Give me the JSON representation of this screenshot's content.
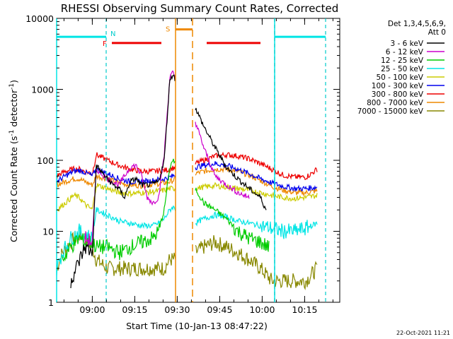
{
  "chart_data": {
    "type": "line",
    "title": "RHESSI Observing Summary Count Rates, Corrected",
    "xlabel": "Start Time (10-Jan-13 08:47:22)",
    "ylabel_main": "Corrected Count Rate (s",
    "ylabel_exp1": "-1",
    "ylabel_mid": " detector",
    "ylabel_exp2": "-1",
    "ylabel_end": ")",
    "x_unit": "minutes since 08:47:22",
    "xlim": [
      0,
      100
    ],
    "ylim": [
      1,
      10000
    ],
    "y_log": true,
    "x_ticks": [
      {
        "x": 12.6,
        "label": "09:00"
      },
      {
        "x": 27.6,
        "label": "09:15"
      },
      {
        "x": 42.6,
        "label": "09:30"
      },
      {
        "x": 57.6,
        "label": "09:45"
      },
      {
        "x": 72.6,
        "label": "10:00"
      },
      {
        "x": 87.6,
        "label": "10:15"
      }
    ],
    "y_ticks": [
      {
        "y": 1,
        "label": "1"
      },
      {
        "y": 10,
        "label": "10"
      },
      {
        "y": 100,
        "label": "100"
      },
      {
        "y": 1000,
        "label": "1000"
      },
      {
        "y": 10000,
        "label": "10000"
      }
    ],
    "legend_header": [
      "Det 1,3,4,5,6,9,",
      "Att 0"
    ],
    "legend_position": "right",
    "series": [
      {
        "name": "3 - 6 keV",
        "color": "#000000",
        "gaps": [
          [
            42,
            49
          ]
        ],
        "points": [
          [
            0,
            0
          ],
          [
            5,
            2
          ],
          [
            10,
            6
          ],
          [
            12.6,
            5
          ],
          [
            14,
            85
          ],
          [
            17,
            60
          ],
          [
            20,
            45
          ],
          [
            22,
            40
          ],
          [
            24,
            30
          ],
          [
            26,
            50
          ],
          [
            28,
            55
          ],
          [
            30,
            45
          ],
          [
            33,
            45
          ],
          [
            36,
            50
          ],
          [
            38,
            100
          ],
          [
            40,
            1400
          ],
          [
            41,
            1600
          ],
          [
            49,
            550
          ],
          [
            52,
            300
          ],
          [
            56,
            150
          ],
          [
            60,
            80
          ],
          [
            64,
            55
          ],
          [
            68,
            40
          ],
          [
            72,
            30
          ],
          [
            74,
            20
          ]
        ]
      },
      {
        "name": "6 - 12 keV",
        "color": "#cc00cc",
        "gaps": [
          [
            42,
            49
          ]
        ],
        "points": [
          [
            10,
            8
          ],
          [
            12.6,
            7
          ],
          [
            14,
            75
          ],
          [
            18,
            55
          ],
          [
            22,
            45
          ],
          [
            26,
            80
          ],
          [
            28,
            85
          ],
          [
            30,
            60
          ],
          [
            32,
            30
          ],
          [
            34,
            25
          ],
          [
            36,
            30
          ],
          [
            38,
            120
          ],
          [
            40,
            1500
          ],
          [
            41,
            1700
          ],
          [
            49,
            350
          ],
          [
            52,
            150
          ],
          [
            56,
            60
          ],
          [
            60,
            45
          ],
          [
            64,
            35
          ],
          [
            68,
            30
          ]
        ]
      },
      {
        "name": "12 - 25 keV",
        "color": "#00cc00",
        "gaps": [
          [
            42,
            49
          ]
        ],
        "points": [
          [
            2,
            4
          ],
          [
            5,
            6
          ],
          [
            8,
            8
          ],
          [
            10,
            7
          ],
          [
            12.6,
            7
          ],
          [
            14,
            6
          ],
          [
            18,
            6
          ],
          [
            22,
            5
          ],
          [
            26,
            6
          ],
          [
            30,
            7
          ],
          [
            34,
            8
          ],
          [
            36,
            10
          ],
          [
            38,
            20
          ],
          [
            40,
            80
          ],
          [
            41,
            100
          ],
          [
            49,
            40
          ],
          [
            52,
            25
          ],
          [
            56,
            20
          ],
          [
            60,
            15
          ],
          [
            64,
            10
          ],
          [
            68,
            8
          ],
          [
            72,
            7
          ],
          [
            75,
            6
          ]
        ]
      },
      {
        "name": "25 - 50 keV",
        "color": "#00e5e5",
        "gaps": [
          [
            42,
            49
          ]
        ],
        "points": [
          [
            0,
            3
          ],
          [
            2,
            5
          ],
          [
            5,
            8
          ],
          [
            8,
            10
          ],
          [
            10,
            9
          ],
          [
            12.6,
            8
          ],
          [
            14,
            20
          ],
          [
            18,
            17
          ],
          [
            22,
            14
          ],
          [
            26,
            13
          ],
          [
            30,
            12
          ],
          [
            34,
            12
          ],
          [
            36,
            13
          ],
          [
            38,
            15
          ],
          [
            40,
            20
          ],
          [
            41,
            22
          ],
          [
            49,
            13
          ],
          [
            52,
            15
          ],
          [
            56,
            17
          ],
          [
            60,
            16
          ],
          [
            64,
            14
          ],
          [
            68,
            13
          ],
          [
            72,
            12
          ],
          [
            76,
            11
          ],
          [
            80,
            10
          ],
          [
            84,
            10
          ],
          [
            88,
            11
          ],
          [
            90,
            12
          ],
          [
            92,
            13
          ]
        ]
      },
      {
        "name": "50 - 100 keV",
        "color": "#cccc00",
        "gaps": [
          [
            42,
            49
          ]
        ],
        "points": [
          [
            0,
            20
          ],
          [
            3,
            25
          ],
          [
            6,
            32
          ],
          [
            8,
            30
          ],
          [
            10,
            24
          ],
          [
            12.6,
            20
          ],
          [
            14,
            45
          ],
          [
            18,
            40
          ],
          [
            22,
            35
          ],
          [
            26,
            34
          ],
          [
            30,
            35
          ],
          [
            34,
            36
          ],
          [
            38,
            38
          ],
          [
            40,
            40
          ],
          [
            41,
            40
          ],
          [
            49,
            40
          ],
          [
            52,
            42
          ],
          [
            56,
            44
          ],
          [
            60,
            42
          ],
          [
            64,
            40
          ],
          [
            68,
            38
          ],
          [
            72,
            35
          ],
          [
            76,
            32
          ],
          [
            80,
            30
          ],
          [
            84,
            29
          ],
          [
            88,
            30
          ],
          [
            92,
            32
          ]
        ]
      },
      {
        "name": "100 - 300 keV",
        "color": "#0000ee",
        "gaps": [
          [
            42,
            49
          ]
        ],
        "points": [
          [
            0,
            50
          ],
          [
            3,
            60
          ],
          [
            6,
            70
          ],
          [
            8,
            72
          ],
          [
            10,
            68
          ],
          [
            12.6,
            60
          ],
          [
            14,
            75
          ],
          [
            18,
            65
          ],
          [
            22,
            55
          ],
          [
            26,
            50
          ],
          [
            30,
            50
          ],
          [
            34,
            52
          ],
          [
            38,
            55
          ],
          [
            40,
            58
          ],
          [
            41,
            60
          ],
          [
            49,
            80
          ],
          [
            52,
            85
          ],
          [
            56,
            90
          ],
          [
            60,
            85
          ],
          [
            64,
            75
          ],
          [
            68,
            65
          ],
          [
            72,
            55
          ],
          [
            76,
            48
          ],
          [
            80,
            43
          ],
          [
            84,
            40
          ],
          [
            88,
            40
          ],
          [
            92,
            42
          ]
        ]
      },
      {
        "name": "300 - 800 keV",
        "color": "#ee0000",
        "gaps": [
          [
            42,
            49
          ]
        ],
        "points": [
          [
            0,
            60
          ],
          [
            3,
            70
          ],
          [
            6,
            75
          ],
          [
            8,
            75
          ],
          [
            10,
            70
          ],
          [
            12.6,
            65
          ],
          [
            14,
            120
          ],
          [
            18,
            100
          ],
          [
            22,
            85
          ],
          [
            26,
            75
          ],
          [
            30,
            70
          ],
          [
            34,
            70
          ],
          [
            38,
            72
          ],
          [
            40,
            75
          ],
          [
            41,
            78
          ],
          [
            49,
            90
          ],
          [
            52,
            100
          ],
          [
            56,
            115
          ],
          [
            60,
            120
          ],
          [
            64,
            115
          ],
          [
            68,
            105
          ],
          [
            72,
            90
          ],
          [
            76,
            75
          ],
          [
            80,
            62
          ],
          [
            84,
            58
          ],
          [
            88,
            58
          ],
          [
            90,
            65
          ],
          [
            92,
            75
          ]
        ]
      },
      {
        "name": "800 - 7000 keV",
        "color": "#ee8800",
        "gaps": [
          [
            42,
            49
          ]
        ],
        "points": [
          [
            0,
            45
          ],
          [
            3,
            50
          ],
          [
            6,
            55
          ],
          [
            8,
            55
          ],
          [
            10,
            50
          ],
          [
            12.6,
            45
          ],
          [
            14,
            60
          ],
          [
            18,
            55
          ],
          [
            22,
            48
          ],
          [
            26,
            45
          ],
          [
            30,
            44
          ],
          [
            34,
            46
          ],
          [
            38,
            48
          ],
          [
            40,
            50
          ],
          [
            41,
            52
          ],
          [
            49,
            65
          ],
          [
            52,
            70
          ],
          [
            56,
            75
          ],
          [
            60,
            75
          ],
          [
            64,
            70
          ],
          [
            68,
            62
          ],
          [
            72,
            52
          ],
          [
            76,
            43
          ],
          [
            80,
            38
          ],
          [
            84,
            35
          ],
          [
            88,
            35
          ],
          [
            92,
            37
          ]
        ]
      },
      {
        "name": "7000 - 15000 keV",
        "color": "#888800",
        "gaps": [
          [
            42,
            49
          ]
        ],
        "points": [
          [
            0,
            3
          ],
          [
            2,
            5
          ],
          [
            5,
            7
          ],
          [
            8,
            9
          ],
          [
            10,
            8
          ],
          [
            12.6,
            6
          ],
          [
            14,
            4
          ],
          [
            18,
            3
          ],
          [
            22,
            3
          ],
          [
            26,
            3
          ],
          [
            30,
            3
          ],
          [
            34,
            3
          ],
          [
            38,
            3
          ],
          [
            40,
            4
          ],
          [
            41,
            4
          ],
          [
            49,
            5
          ],
          [
            52,
            6
          ],
          [
            56,
            7
          ],
          [
            60,
            6
          ],
          [
            64,
            5
          ],
          [
            68,
            4
          ],
          [
            72,
            3
          ],
          [
            76,
            2
          ],
          [
            80,
            2
          ],
          [
            84,
            2
          ],
          [
            88,
            2
          ],
          [
            92,
            3
          ]
        ]
      }
    ],
    "annotations": {
      "night_label": "N",
      "flare_label": "F",
      "saa_label": "S",
      "night_bars": [
        [
          0,
          17.5
        ],
        [
          77,
          95
        ]
      ],
      "night_level": 5500,
      "flare_bars": [
        [
          19.5,
          37
        ],
        [
          53,
          72
        ]
      ],
      "flare_level": 4500,
      "flare_marker_x": 19,
      "saa_bar": [
        42,
        48
      ],
      "saa_level": 7000,
      "dashed_cyan": [
        17.5,
        77,
        95
      ],
      "solid_cyan": [
        0,
        77
      ],
      "solid_orange": [
        42,
        48
      ]
    }
  },
  "footer_date": "22-Oct-2021 11:21"
}
